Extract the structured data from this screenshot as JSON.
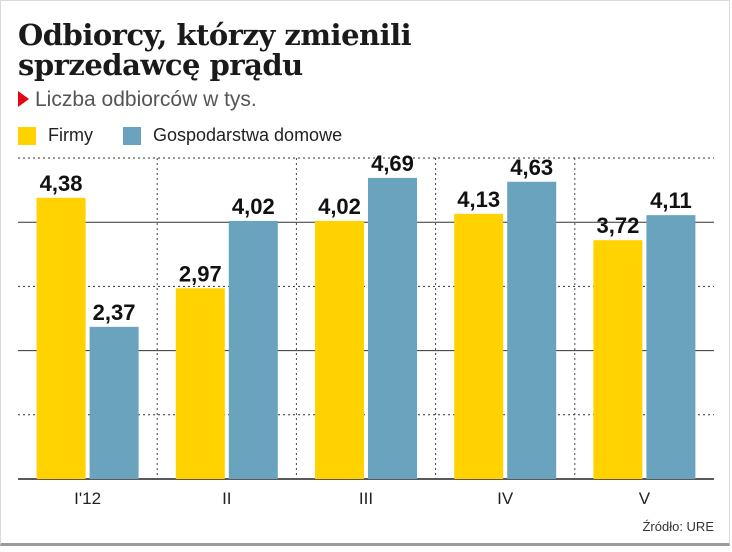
{
  "title": "Odbiorcy, którzy zmienili sprzedawcę prądu",
  "subtitle": "Liczba odbiorców w tys.",
  "source": "Źródło: URE",
  "colors": {
    "firmy": "#ffd200",
    "gospodarstwa": "#6aa3bd",
    "accent": "#e30613"
  },
  "chart_data": {
    "type": "bar",
    "title": "Odbiorcy, którzy zmienili sprzedawcę prądu",
    "subtitle": "Liczba odbiorców w tys.",
    "categories": [
      "I'12",
      "II",
      "III",
      "IV",
      "V"
    ],
    "series": [
      {
        "name": "Firmy",
        "values": [
          4.38,
          2.97,
          4.02,
          4.13,
          3.72
        ],
        "labels": [
          "4,38",
          "2,97",
          "4,02",
          "4,13",
          "3,72"
        ]
      },
      {
        "name": "Gospodarstwa domowe",
        "values": [
          2.37,
          4.02,
          4.69,
          4.63,
          4.11
        ],
        "labels": [
          "2,37",
          "4,02",
          "4,69",
          "4,63",
          "4,11"
        ]
      }
    ],
    "ylim": [
      0,
      5
    ],
    "grid": true,
    "legend": "top-left",
    "xlabel": "",
    "ylabel": ""
  }
}
